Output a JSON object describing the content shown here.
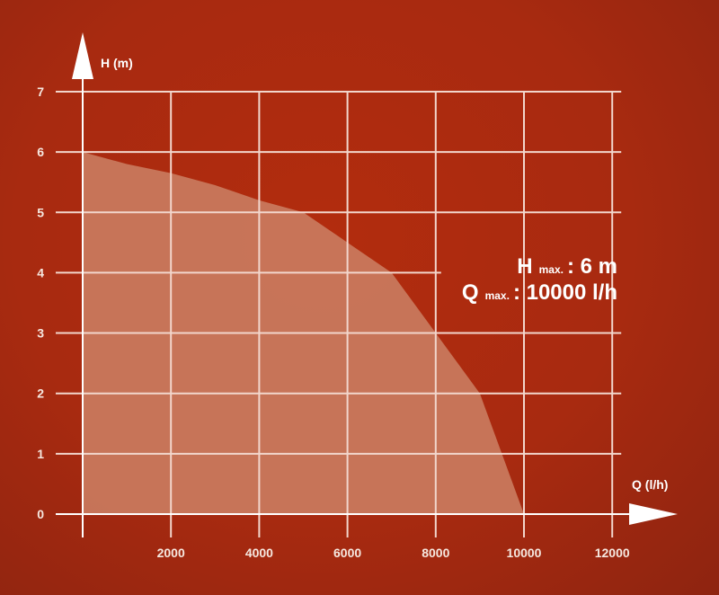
{
  "chart_data": {
    "type": "area",
    "title": "",
    "xlabel": "Q (l/h)",
    "ylabel": "H (m)",
    "xlim": [
      0,
      12000
    ],
    "ylim": [
      0,
      7
    ],
    "x_ticks": [
      2000,
      4000,
      6000,
      8000,
      10000,
      12000
    ],
    "y_ticks": [
      0,
      1,
      2,
      3,
      4,
      5,
      6,
      7
    ],
    "grid": true,
    "legend": "none",
    "series": [
      {
        "x": [
          0,
          1000,
          2000,
          3000,
          4000,
          5000,
          6000,
          7000,
          8000,
          9000,
          9500,
          10000
        ],
        "values": [
          6.0,
          5.8,
          5.65,
          5.45,
          5.2,
          5.0,
          4.5,
          4.0,
          3.0,
          2.0,
          1.0,
          0.0
        ]
      }
    ],
    "annotations": {
      "hmax": {
        "letter": "H",
        "sub": "max.",
        "value": ": 6 m"
      },
      "qmax": {
        "letter": "Q",
        "sub": "max.",
        "value": ": 10000 l/h"
      }
    },
    "colors": {
      "background": "#a82a10",
      "area_fill": "#c97a5e",
      "grid": "#f2d6cc",
      "text": "#ffffff"
    }
  }
}
